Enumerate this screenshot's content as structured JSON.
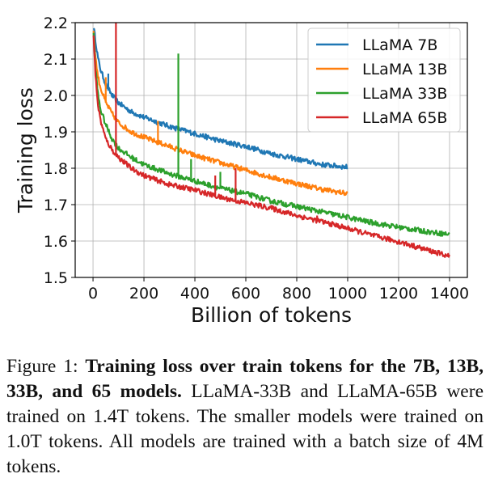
{
  "caption": {
    "label": "Figure 1:",
    "bold": "Training loss over train tokens for the 7B, 13B, 33B, and 65 models.",
    "text": "LLaMA-33B and LLaMA-65B were trained on 1.4T tokens. The smaller models were trained on 1.0T tokens.  All models are trained with a batch size of 4M tokens."
  },
  "chart_data": {
    "type": "line",
    "title": "",
    "xlabel": "Billion of tokens",
    "ylabel": "Training loss",
    "xlim": [
      -70,
      1470
    ],
    "ylim": [
      1.5,
      2.2
    ],
    "xticks": [
      0,
      200,
      400,
      600,
      800,
      1000,
      1200,
      1400
    ],
    "yticks": [
      1.5,
      1.6,
      1.7,
      1.8,
      1.9,
      2.0,
      2.1,
      2.2
    ],
    "grid": true,
    "legend_position": "top-right",
    "series": [
      {
        "name": "LLaMA 7B",
        "color": "#1f77b4",
        "x": [
          0,
          10,
          20,
          30,
          50,
          75,
          100,
          150,
          200,
          300,
          400,
          500,
          600,
          700,
          800,
          900,
          1000
        ],
        "y": [
          2.2,
          2.15,
          2.1,
          2.07,
          2.03,
          2.0,
          1.98,
          1.955,
          1.94,
          1.915,
          1.895,
          1.875,
          1.86,
          1.84,
          1.825,
          1.81,
          1.803
        ],
        "spikes": [
          {
            "x": 60,
            "y": 2.06
          }
        ]
      },
      {
        "name": "LLaMA 13B",
        "color": "#ff7f0e",
        "x": [
          0,
          10,
          20,
          30,
          50,
          75,
          100,
          150,
          200,
          300,
          400,
          500,
          600,
          700,
          800,
          900,
          1000
        ],
        "y": [
          2.2,
          2.1,
          2.05,
          2.02,
          1.98,
          1.95,
          1.925,
          1.9,
          1.885,
          1.86,
          1.835,
          1.815,
          1.795,
          1.775,
          1.758,
          1.742,
          1.73
        ],
        "spikes": [
          {
            "x": 50,
            "y": 2.05
          },
          {
            "x": 255,
            "y": 1.93
          }
        ]
      },
      {
        "name": "LLaMA 33B",
        "color": "#2ca02c",
        "x": [
          0,
          10,
          20,
          30,
          50,
          75,
          100,
          150,
          200,
          300,
          400,
          500,
          600,
          700,
          800,
          900,
          1000,
          1100,
          1200,
          1300,
          1400
        ],
        "y": [
          2.2,
          2.07,
          2.0,
          1.96,
          1.92,
          1.88,
          1.855,
          1.83,
          1.81,
          1.785,
          1.765,
          1.745,
          1.73,
          1.71,
          1.695,
          1.68,
          1.665,
          1.65,
          1.638,
          1.627,
          1.618
        ],
        "spikes": [
          {
            "x": 335,
            "y": 2.115
          },
          {
            "x": 385,
            "y": 1.825
          },
          {
            "x": 500,
            "y": 1.79
          }
        ]
      },
      {
        "name": "LLaMA 65B",
        "color": "#d62728",
        "x": [
          0,
          10,
          20,
          30,
          50,
          75,
          100,
          150,
          200,
          300,
          400,
          500,
          600,
          700,
          800,
          900,
          1000,
          1100,
          1200,
          1300,
          1400
        ],
        "y": [
          2.2,
          2.05,
          1.97,
          1.93,
          1.88,
          1.85,
          1.83,
          1.8,
          1.78,
          1.755,
          1.74,
          1.72,
          1.705,
          1.69,
          1.67,
          1.653,
          1.635,
          1.615,
          1.598,
          1.578,
          1.558
        ],
        "spikes": [
          {
            "x": 90,
            "y": 2.2
          },
          {
            "x": 480,
            "y": 1.78
          },
          {
            "x": 560,
            "y": 1.8
          },
          {
            "x": 880,
            "y": 1.67
          }
        ]
      }
    ]
  }
}
